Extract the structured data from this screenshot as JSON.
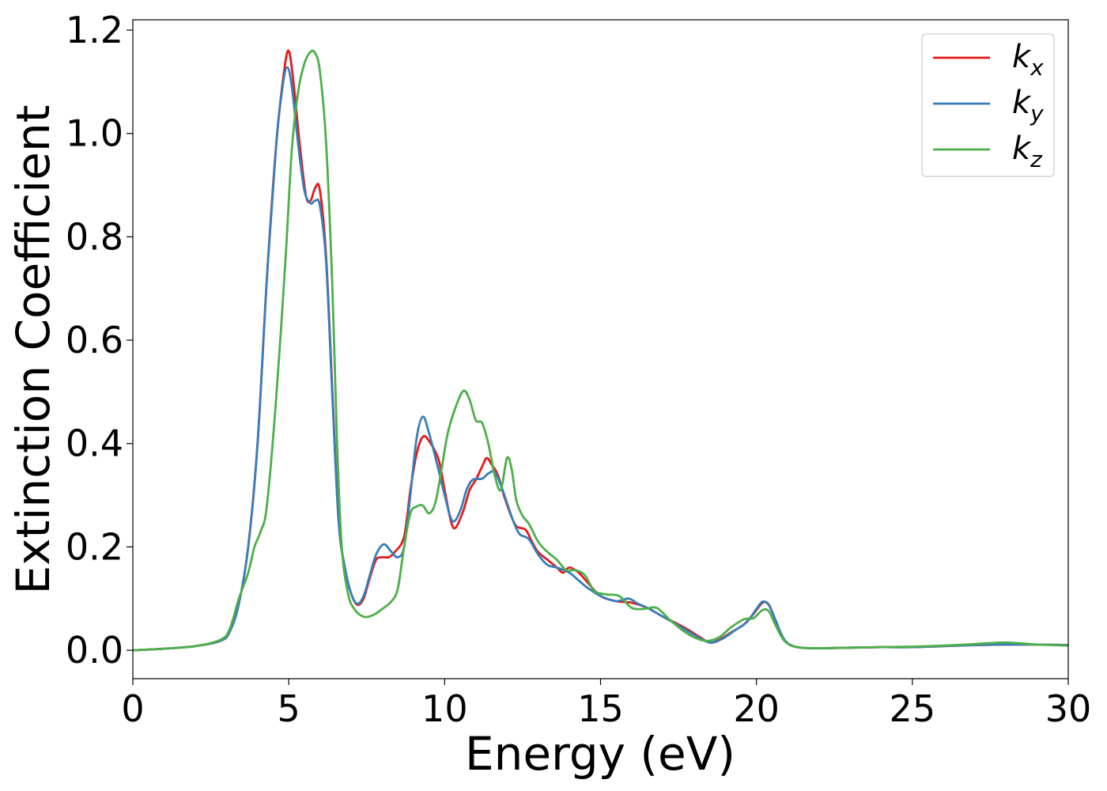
{
  "chart_data": {
    "type": "line",
    "xlabel": "Energy (eV)",
    "ylabel": "Extinction Coefficient",
    "xlim": [
      0,
      30
    ],
    "ylim": [
      -0.055,
      1.22
    ],
    "xticks": [
      0,
      5,
      10,
      15,
      20,
      25,
      30
    ],
    "xtick_labels": [
      "0",
      "5",
      "10",
      "15",
      "20",
      "25",
      "30"
    ],
    "yticks": [
      0.0,
      0.2,
      0.4,
      0.6,
      0.8,
      1.0,
      1.2
    ],
    "ytick_labels": [
      "0.0",
      "0.2",
      "0.4",
      "0.6",
      "0.8",
      "1.0",
      "1.2"
    ],
    "grid": false,
    "legend_position": "top-right",
    "series": [
      {
        "name": "k",
        "subscript": "x",
        "color": "#e41a1c",
        "points": [
          [
            0,
            0
          ],
          [
            1,
            0.003
          ],
          [
            2,
            0.008
          ],
          [
            2.8,
            0.018
          ],
          [
            3.1,
            0.035
          ],
          [
            3.4,
            0.09
          ],
          [
            3.7,
            0.2
          ],
          [
            4.0,
            0.4
          ],
          [
            4.3,
            0.72
          ],
          [
            4.6,
            0.98
          ],
          [
            4.85,
            1.12
          ],
          [
            5.0,
            1.16
          ],
          [
            5.15,
            1.1
          ],
          [
            5.35,
            0.98
          ],
          [
            5.55,
            0.88
          ],
          [
            5.7,
            0.87
          ],
          [
            5.85,
            0.895
          ],
          [
            6.0,
            0.89
          ],
          [
            6.2,
            0.76
          ],
          [
            6.4,
            0.5
          ],
          [
            6.6,
            0.25
          ],
          [
            6.8,
            0.16
          ],
          [
            7.0,
            0.11
          ],
          [
            7.2,
            0.088
          ],
          [
            7.4,
            0.1
          ],
          [
            7.6,
            0.14
          ],
          [
            7.8,
            0.175
          ],
          [
            8.0,
            0.18
          ],
          [
            8.2,
            0.18
          ],
          [
            8.4,
            0.19
          ],
          [
            8.7,
            0.22
          ],
          [
            8.9,
            0.31
          ],
          [
            9.1,
            0.38
          ],
          [
            9.3,
            0.413
          ],
          [
            9.5,
            0.405
          ],
          [
            9.8,
            0.37
          ],
          [
            10.0,
            0.31
          ],
          [
            10.2,
            0.25
          ],
          [
            10.35,
            0.237
          ],
          [
            10.6,
            0.27
          ],
          [
            10.8,
            0.31
          ],
          [
            11.0,
            0.33
          ],
          [
            11.2,
            0.355
          ],
          [
            11.35,
            0.372
          ],
          [
            11.5,
            0.36
          ],
          [
            11.7,
            0.34
          ],
          [
            11.9,
            0.3
          ],
          [
            12.1,
            0.265
          ],
          [
            12.3,
            0.24
          ],
          [
            12.6,
            0.233
          ],
          [
            12.8,
            0.21
          ],
          [
            13.0,
            0.19
          ],
          [
            13.3,
            0.175
          ],
          [
            13.6,
            0.16
          ],
          [
            13.8,
            0.15
          ],
          [
            14.0,
            0.16
          ],
          [
            14.3,
            0.15
          ],
          [
            14.6,
            0.13
          ],
          [
            15.0,
            0.105
          ],
          [
            15.5,
            0.095
          ],
          [
            16.0,
            0.092
          ],
          [
            16.5,
            0.082
          ],
          [
            17.0,
            0.065
          ],
          [
            17.5,
            0.05
          ],
          [
            17.8,
            0.04
          ],
          [
            18.2,
            0.025
          ],
          [
            18.5,
            0.015
          ],
          [
            18.8,
            0.02
          ],
          [
            19.2,
            0.035
          ],
          [
            19.6,
            0.05
          ],
          [
            19.9,
            0.07
          ],
          [
            20.2,
            0.092
          ],
          [
            20.4,
            0.088
          ],
          [
            20.6,
            0.06
          ],
          [
            20.9,
            0.02
          ],
          [
            21.3,
            0.006
          ],
          [
            22,
            0.004
          ],
          [
            23,
            0.005
          ],
          [
            24,
            0.006
          ],
          [
            25,
            0.006
          ],
          [
            26,
            0.008
          ],
          [
            27,
            0.01
          ],
          [
            28,
            0.011
          ],
          [
            29,
            0.011
          ],
          [
            30,
            0.01
          ]
        ]
      },
      {
        "name": "k",
        "subscript": "y",
        "color": "#377eb8",
        "points": [
          [
            0,
            0
          ],
          [
            1,
            0.003
          ],
          [
            2,
            0.008
          ],
          [
            2.8,
            0.018
          ],
          [
            3.1,
            0.035
          ],
          [
            3.4,
            0.09
          ],
          [
            3.7,
            0.2
          ],
          [
            4.0,
            0.4
          ],
          [
            4.3,
            0.72
          ],
          [
            4.6,
            0.98
          ],
          [
            4.8,
            1.09
          ],
          [
            4.95,
            1.128
          ],
          [
            5.1,
            1.09
          ],
          [
            5.3,
            0.98
          ],
          [
            5.5,
            0.89
          ],
          [
            5.7,
            0.865
          ],
          [
            5.85,
            0.87
          ],
          [
            6.0,
            0.86
          ],
          [
            6.2,
            0.75
          ],
          [
            6.4,
            0.49
          ],
          [
            6.6,
            0.25
          ],
          [
            6.8,
            0.16
          ],
          [
            7.0,
            0.11
          ],
          [
            7.2,
            0.09
          ],
          [
            7.4,
            0.105
          ],
          [
            7.6,
            0.145
          ],
          [
            7.8,
            0.185
          ],
          [
            8.05,
            0.205
          ],
          [
            8.3,
            0.19
          ],
          [
            8.5,
            0.18
          ],
          [
            8.7,
            0.2
          ],
          [
            8.9,
            0.3
          ],
          [
            9.1,
            0.41
          ],
          [
            9.3,
            0.452
          ],
          [
            9.5,
            0.42
          ],
          [
            9.8,
            0.35
          ],
          [
            10.0,
            0.3
          ],
          [
            10.25,
            0.25
          ],
          [
            10.5,
            0.27
          ],
          [
            10.7,
            0.31
          ],
          [
            10.9,
            0.33
          ],
          [
            11.2,
            0.332
          ],
          [
            11.4,
            0.342
          ],
          [
            11.6,
            0.345
          ],
          [
            11.8,
            0.32
          ],
          [
            12.0,
            0.285
          ],
          [
            12.2,
            0.25
          ],
          [
            12.4,
            0.225
          ],
          [
            12.7,
            0.215
          ],
          [
            13.0,
            0.185
          ],
          [
            13.3,
            0.165
          ],
          [
            13.6,
            0.16
          ],
          [
            14.0,
            0.15
          ],
          [
            14.3,
            0.135
          ],
          [
            14.6,
            0.12
          ],
          [
            15.0,
            0.105
          ],
          [
            15.5,
            0.095
          ],
          [
            15.9,
            0.1
          ],
          [
            16.2,
            0.09
          ],
          [
            16.5,
            0.082
          ],
          [
            17.0,
            0.065
          ],
          [
            17.5,
            0.048
          ],
          [
            18.0,
            0.03
          ],
          [
            18.5,
            0.015
          ],
          [
            18.9,
            0.022
          ],
          [
            19.3,
            0.038
          ],
          [
            19.7,
            0.055
          ],
          [
            20.0,
            0.08
          ],
          [
            20.2,
            0.094
          ],
          [
            20.4,
            0.087
          ],
          [
            20.6,
            0.06
          ],
          [
            20.9,
            0.02
          ],
          [
            21.3,
            0.006
          ],
          [
            22,
            0.004
          ],
          [
            23,
            0.005
          ],
          [
            24,
            0.006
          ],
          [
            25,
            0.006
          ],
          [
            26,
            0.008
          ],
          [
            27,
            0.01
          ],
          [
            28,
            0.011
          ],
          [
            29,
            0.011
          ],
          [
            30,
            0.01
          ]
        ]
      },
      {
        "name": "k",
        "subscript": "z",
        "color": "#4daf4a",
        "points": [
          [
            0,
            0
          ],
          [
            1,
            0.003
          ],
          [
            2,
            0.008
          ],
          [
            2.8,
            0.02
          ],
          [
            3.1,
            0.04
          ],
          [
            3.4,
            0.1
          ],
          [
            3.7,
            0.15
          ],
          [
            3.9,
            0.2
          ],
          [
            4.1,
            0.23
          ],
          [
            4.3,
            0.28
          ],
          [
            4.6,
            0.49
          ],
          [
            4.9,
            0.76
          ],
          [
            5.1,
            0.97
          ],
          [
            5.3,
            1.08
          ],
          [
            5.5,
            1.135
          ],
          [
            5.7,
            1.158
          ],
          [
            5.85,
            1.155
          ],
          [
            6.0,
            1.12
          ],
          [
            6.2,
            0.98
          ],
          [
            6.4,
            0.7
          ],
          [
            6.55,
            0.4
          ],
          [
            6.7,
            0.2
          ],
          [
            6.9,
            0.11
          ],
          [
            7.1,
            0.08
          ],
          [
            7.4,
            0.065
          ],
          [
            7.7,
            0.068
          ],
          [
            8.0,
            0.08
          ],
          [
            8.3,
            0.095
          ],
          [
            8.5,
            0.12
          ],
          [
            8.7,
            0.2
          ],
          [
            8.9,
            0.265
          ],
          [
            9.1,
            0.278
          ],
          [
            9.3,
            0.28
          ],
          [
            9.5,
            0.265
          ],
          [
            9.7,
            0.285
          ],
          [
            9.9,
            0.35
          ],
          [
            10.1,
            0.42
          ],
          [
            10.35,
            0.47
          ],
          [
            10.6,
            0.502
          ],
          [
            10.8,
            0.485
          ],
          [
            11.0,
            0.445
          ],
          [
            11.2,
            0.44
          ],
          [
            11.4,
            0.4
          ],
          [
            11.6,
            0.34
          ],
          [
            11.8,
            0.31
          ],
          [
            12.0,
            0.372
          ],
          [
            12.15,
            0.35
          ],
          [
            12.3,
            0.29
          ],
          [
            12.5,
            0.26
          ],
          [
            12.7,
            0.245
          ],
          [
            13.0,
            0.21
          ],
          [
            13.3,
            0.19
          ],
          [
            13.6,
            0.175
          ],
          [
            13.9,
            0.155
          ],
          [
            14.2,
            0.155
          ],
          [
            14.5,
            0.145
          ],
          [
            14.8,
            0.115
          ],
          [
            15.2,
            0.108
          ],
          [
            15.6,
            0.105
          ],
          [
            16.0,
            0.082
          ],
          [
            16.4,
            0.08
          ],
          [
            16.8,
            0.082
          ],
          [
            17.2,
            0.06
          ],
          [
            17.6,
            0.04
          ],
          [
            18.0,
            0.025
          ],
          [
            18.4,
            0.018
          ],
          [
            18.8,
            0.025
          ],
          [
            19.2,
            0.045
          ],
          [
            19.6,
            0.06
          ],
          [
            19.9,
            0.062
          ],
          [
            20.2,
            0.078
          ],
          [
            20.4,
            0.075
          ],
          [
            20.6,
            0.05
          ],
          [
            20.9,
            0.018
          ],
          [
            21.3,
            0.006
          ],
          [
            22,
            0.004
          ],
          [
            23,
            0.005
          ],
          [
            24,
            0.006
          ],
          [
            25,
            0.007
          ],
          [
            26,
            0.009
          ],
          [
            27,
            0.012
          ],
          [
            28,
            0.015
          ],
          [
            29,
            0.011
          ],
          [
            30,
            0.009
          ]
        ]
      }
    ]
  }
}
